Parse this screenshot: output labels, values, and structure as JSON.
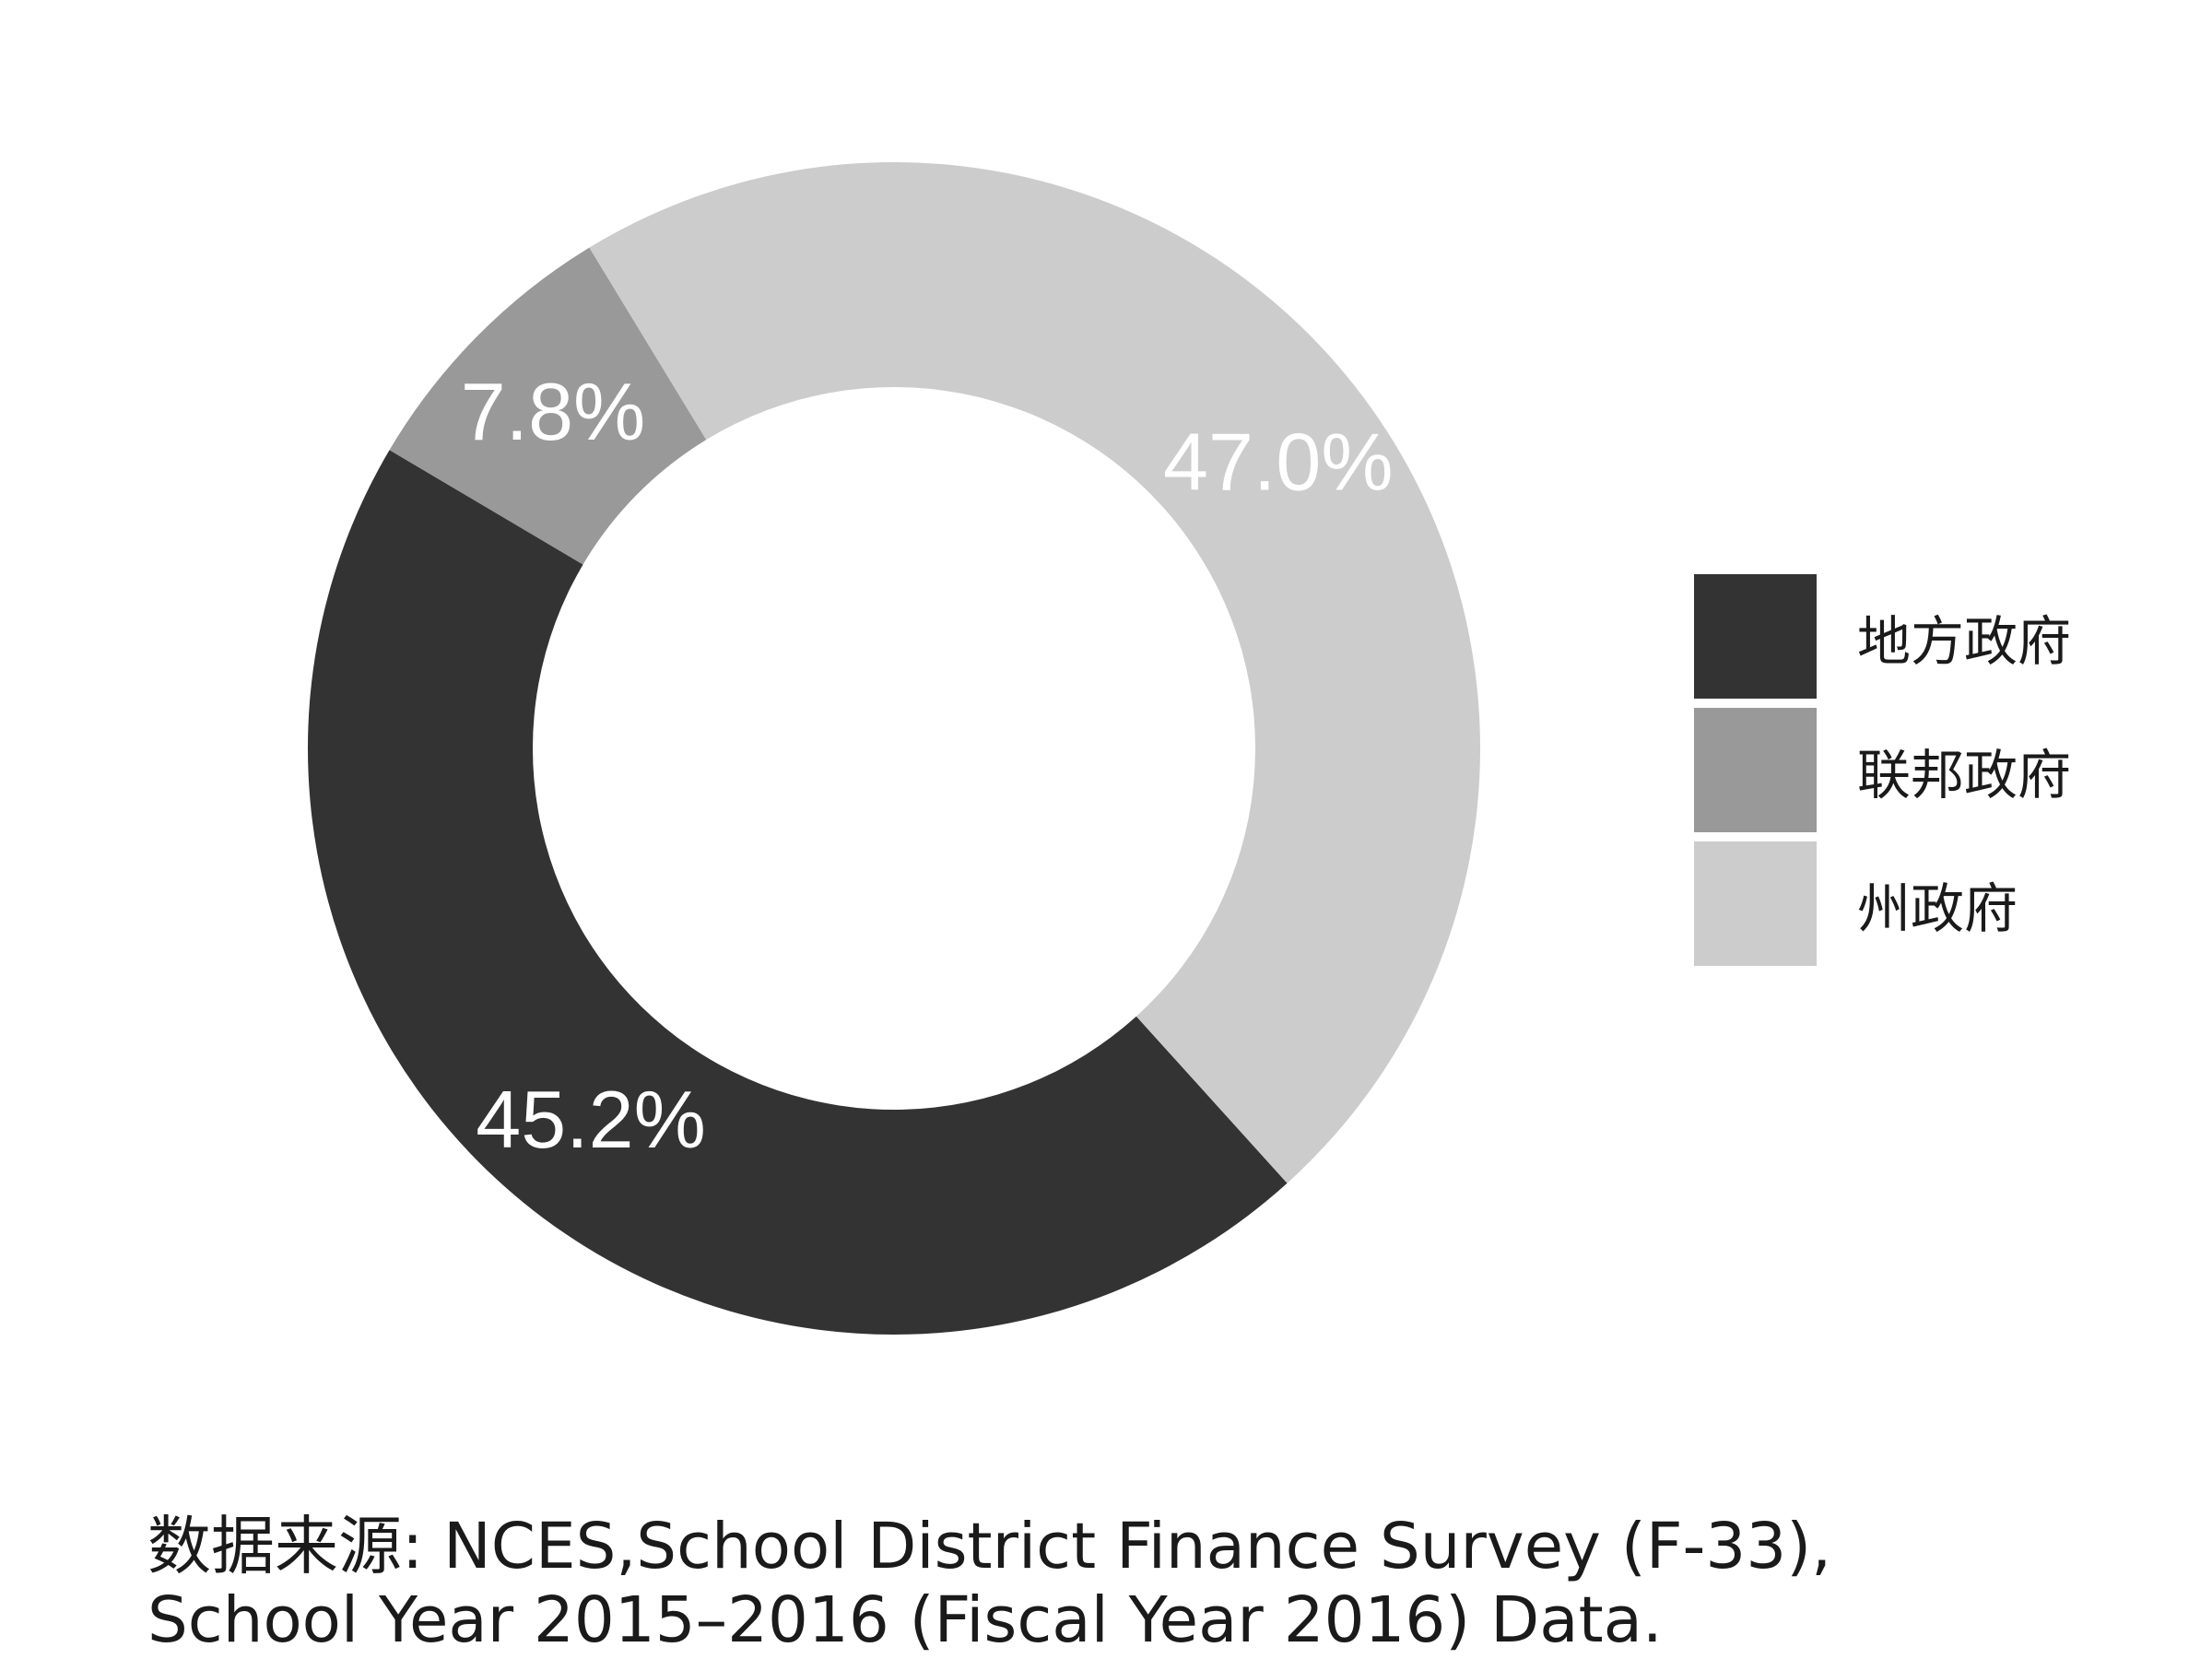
{
  "chart_data": {
    "type": "pie",
    "subtype": "donut",
    "title": "",
    "categories": [
      "地方政府",
      "联邦政府",
      "州政府"
    ],
    "values": [
      45.2,
      7.8,
      47.0
    ],
    "labels": [
      "45.2%",
      "7.8%",
      "47.0%"
    ],
    "colors": [
      "#333333",
      "#999999",
      "#cccccc"
    ],
    "legend_position": "right"
  },
  "source": {
    "line1": "数据来源: NCES,School District Finance Survey (F-33),",
    "line2": "School Year 2015–2016 (Fiscal Year 2016) Data."
  }
}
